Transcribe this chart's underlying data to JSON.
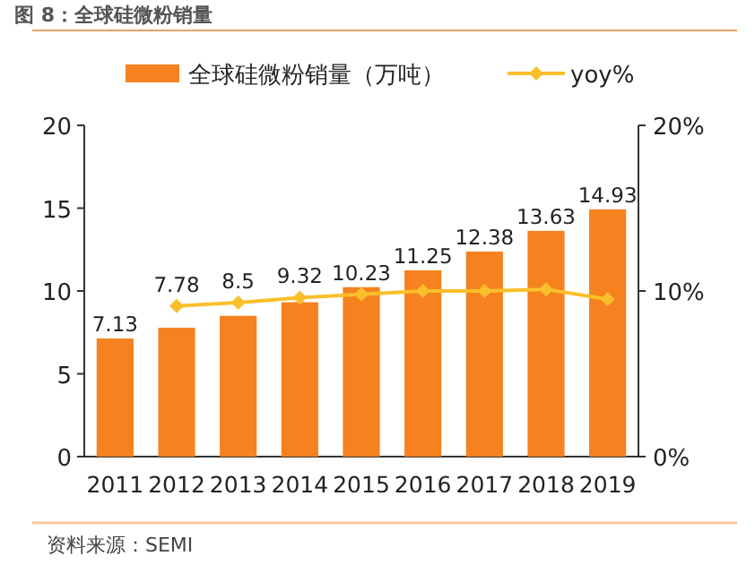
{
  "chart_data": {
    "type": "bar",
    "title": "图 8：全球硅微粉销量",
    "categories": [
      "2011",
      "2012",
      "2013",
      "2014",
      "2015",
      "2016",
      "2017",
      "2018",
      "2019"
    ],
    "series": [
      {
        "name": "全球硅微粉销量（万吨）",
        "type": "bar",
        "color": "#f5821f",
        "values": [
          7.13,
          7.78,
          8.5,
          9.32,
          10.23,
          11.25,
          12.38,
          13.63,
          14.93
        ],
        "value_labels": [
          "7.13",
          "7.78",
          "8.5",
          "9.32",
          "10.23",
          "11.25",
          "12.38",
          "13.63",
          "14.93"
        ]
      },
      {
        "name": "yoy%",
        "type": "line",
        "axis": "y2",
        "color": "#fbbf2b",
        "marker": "diamond",
        "values": [
          null,
          9.1,
          9.3,
          9.6,
          9.8,
          10.0,
          10.0,
          10.1,
          9.5
        ]
      }
    ],
    "ylim": [
      0,
      20
    ],
    "yticks": [
      0,
      5,
      10,
      15,
      20
    ],
    "y2lim": [
      0,
      20
    ],
    "y2ticks": [
      {
        "value": 0,
        "label": "0%"
      },
      {
        "value": 10,
        "label": "10%"
      },
      {
        "value": 20,
        "label": "20%"
      }
    ],
    "legend": "top",
    "grid": false,
    "annotations": [
      "资料来源：SEMI"
    ]
  }
}
